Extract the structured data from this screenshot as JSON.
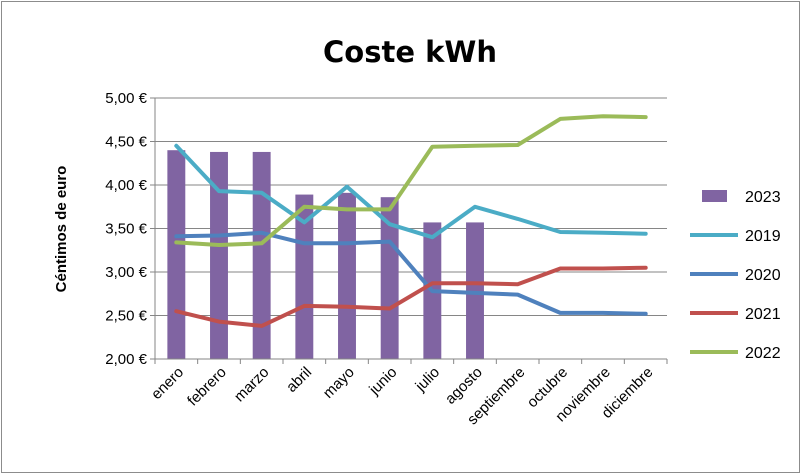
{
  "chart_data": {
    "type": "bar",
    "title": "Coste kWh",
    "xlabel": "",
    "ylabel": "Céntimos de euro",
    "categories": [
      "enero",
      "febrero",
      "marzo",
      "abril",
      "mayo",
      "junio",
      "julio",
      "agosto",
      "septiembre",
      "octubre",
      "noviembre",
      "diciembre"
    ],
    "ylim": [
      2.0,
      5.0
    ],
    "yticks": [
      "2,00 €",
      "2,50 €",
      "3,00 €",
      "3,50 €",
      "4,00 €",
      "4,50 €",
      "5,00 €"
    ],
    "grid": true,
    "legend_position": "right",
    "series": [
      {
        "name": "2023",
        "kind": "bar",
        "color": "#8064a2",
        "values": [
          4.4,
          4.38,
          4.38,
          3.89,
          3.91,
          3.86,
          3.57,
          3.57,
          null,
          null,
          null,
          null
        ]
      },
      {
        "name": "2019",
        "kind": "line",
        "color": "#4bacc6",
        "values": [
          4.45,
          3.93,
          3.91,
          3.57,
          3.98,
          3.55,
          3.4,
          3.75,
          3.61,
          3.46,
          3.45,
          3.44
        ]
      },
      {
        "name": "2020",
        "kind": "line",
        "color": "#4f81bd",
        "values": [
          3.41,
          3.42,
          3.45,
          3.33,
          3.33,
          3.35,
          2.78,
          2.76,
          2.74,
          2.53,
          2.53,
          2.52
        ]
      },
      {
        "name": "2021",
        "kind": "line",
        "color": "#c0504d",
        "values": [
          2.55,
          2.43,
          2.38,
          2.61,
          2.6,
          2.58,
          2.87,
          2.87,
          2.86,
          3.04,
          3.04,
          3.05
        ]
      },
      {
        "name": "2022",
        "kind": "line",
        "color": "#9bbb59",
        "values": [
          3.34,
          3.31,
          3.33,
          3.75,
          3.72,
          3.72,
          4.44,
          4.45,
          4.46,
          4.76,
          4.79,
          4.78
        ]
      }
    ]
  }
}
